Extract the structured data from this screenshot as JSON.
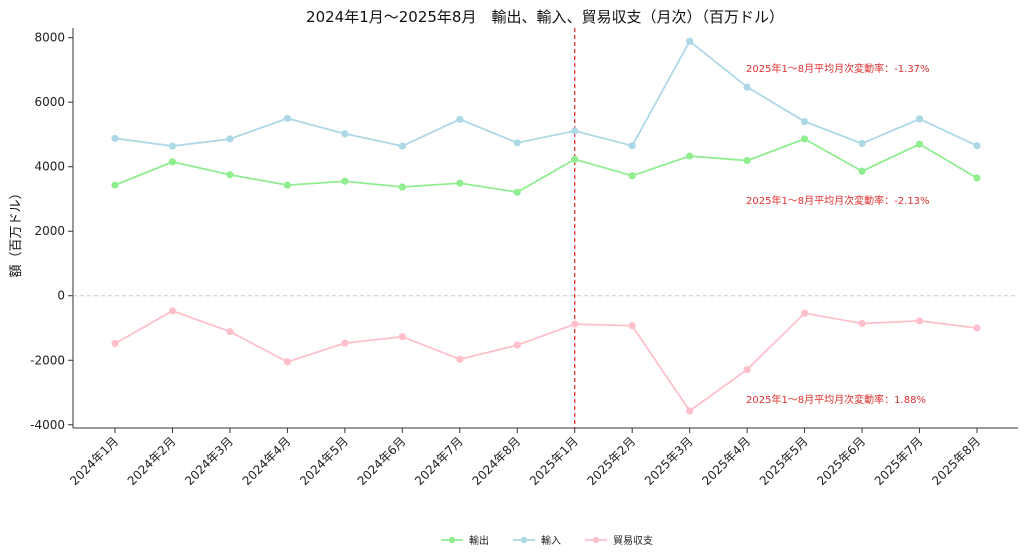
{
  "chart_data": {
    "type": "line",
    "title": "2024年1月～2025年8月　輸出、輸入、貿易収支（月次）（百万ドル）",
    "ylabel": "額（百万ドル）",
    "xlabel": "",
    "ylim": [
      -4100,
      8300
    ],
    "yticks": [
      -4000,
      -2000,
      0,
      2000,
      4000,
      6000,
      8000
    ],
    "categories": [
      "2024年1月",
      "2024年2月",
      "2024年3月",
      "2024年4月",
      "2024年5月",
      "2024年6月",
      "2024年7月",
      "2024年8月",
      "2025年1月",
      "2025年2月",
      "2025年3月",
      "2025年4月",
      "2025年5月",
      "2025年6月",
      "2025年7月",
      "2025年8月"
    ],
    "series": [
      {
        "name": "輸出",
        "color": "#90ee90",
        "values": [
          3430,
          4150,
          3750,
          3430,
          3550,
          3370,
          3490,
          3210,
          4230,
          3720,
          4330,
          4190,
          4860,
          3860,
          4700,
          3650
        ]
      },
      {
        "name": "輸入",
        "color": "#add8e6",
        "values": [
          4880,
          4640,
          4860,
          5500,
          5020,
          4640,
          5470,
          4740,
          5110,
          4650,
          7890,
          6470,
          5400,
          4720,
          5480,
          4650
        ]
      },
      {
        "name": "貿易収支",
        "color": "#ffc0cb",
        "values": [
          -1480,
          -470,
          -1110,
          -2050,
          -1470,
          -1270,
          -1970,
          -1530,
          -880,
          -930,
          -3570,
          -2290,
          -540,
          -860,
          -780,
          -1000
        ]
      }
    ],
    "divider_index": 8,
    "zero_line": true,
    "grid": false,
    "legend_position": "bottom-center",
    "annotations": [
      {
        "text": "2025年1～8月平均月次変動率：-1.37%",
        "series": "輸入",
        "color": "#e03030"
      },
      {
        "text": "2025年1～8月平均月次変動率：-2.13%",
        "series": "輸出",
        "color": "#e03030"
      },
      {
        "text": "2025年1～8月平均月次変動率：1.88%",
        "series": "貿易収支",
        "color": "#e03030"
      }
    ]
  }
}
